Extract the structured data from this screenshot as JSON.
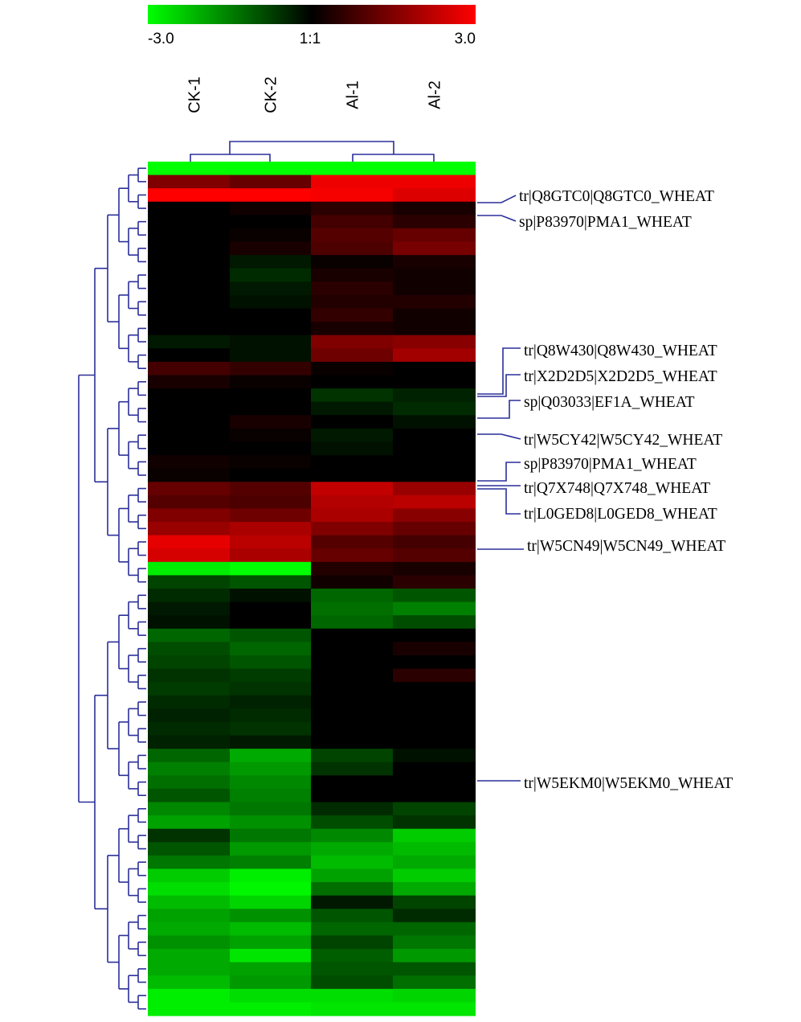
{
  "chart_data": {
    "type": "heatmap",
    "title": "",
    "color_scale": {
      "min": -3.0,
      "max": 3.0,
      "tick_labels": [
        "-3.0",
        "1:1",
        "3.0"
      ],
      "low_color": "#00ff00",
      "mid_color": "#000000",
      "high_color": "#ff0000"
    },
    "columns": [
      "CK-1",
      "CK-2",
      "Al-1",
      "Al-2"
    ],
    "row_tree_color": "#2b2f9a",
    "labeled_rows": [
      {
        "label": "tr|Q8GTC0|Q8GTC0_WHEAT"
      },
      {
        "label": "sp|P83970|PMA1_WHEAT"
      },
      {
        "label": "tr|Q8W430|Q8W430_WHEAT"
      },
      {
        "label": "tr|X2D2D5|X2D2D5_WHEAT"
      },
      {
        "label": "sp|Q03033|EF1A_WHEAT"
      },
      {
        "label": "tr|W5CY42|W5CY42_WHEAT"
      },
      {
        "label": "sp|P83970|PMA1_WHEAT"
      },
      {
        "label": "tr|Q7X748|Q7X748_WHEAT"
      },
      {
        "label": "tr|L0GED8|L0GED8_WHEAT"
      },
      {
        "label": "tr|W5CN49|W5CN49_WHEAT"
      },
      {
        "label": "tr|W5EKM0|W5EKM0_WHEAT"
      }
    ],
    "values": [
      [
        -3.0,
        -3.0,
        -3.0,
        -3.0
      ],
      [
        1.5,
        1.2,
        2.8,
        2.8
      ],
      [
        3.0,
        3.0,
        2.9,
        2.6
      ],
      [
        0.0,
        0.2,
        0.5,
        0.3
      ],
      [
        0.0,
        0.0,
        0.8,
        0.5
      ],
      [
        0.0,
        0.1,
        1.0,
        1.2
      ],
      [
        0.0,
        0.3,
        0.9,
        1.4
      ],
      [
        0.0,
        -0.3,
        0.1,
        0.3
      ],
      [
        0.0,
        -0.5,
        0.3,
        0.2
      ],
      [
        0.0,
        -0.3,
        0.5,
        0.2
      ],
      [
        0.0,
        -0.2,
        0.4,
        0.4
      ],
      [
        0.0,
        0.0,
        0.6,
        0.2
      ],
      [
        0.0,
        0.0,
        0.3,
        0.2
      ],
      [
        -0.3,
        -0.2,
        1.5,
        1.6
      ],
      [
        0.0,
        -0.2,
        1.3,
        1.9
      ],
      [
        0.8,
        0.6,
        0.1,
        0.0
      ],
      [
        0.3,
        0.1,
        0.0,
        0.0
      ],
      [
        0.0,
        0.0,
        -0.6,
        -0.4
      ],
      [
        0.0,
        0.0,
        -0.3,
        -0.5
      ],
      [
        0.0,
        0.3,
        0.0,
        -0.2
      ],
      [
        0.0,
        0.1,
        -0.3,
        0.0
      ],
      [
        0.0,
        0.0,
        -0.2,
        0.0
      ],
      [
        0.2,
        0.1,
        0.0,
        0.0
      ],
      [
        0.1,
        0.0,
        0.0,
        0.0
      ],
      [
        1.2,
        1.0,
        2.3,
        1.8
      ],
      [
        1.0,
        0.9,
        2.1,
        2.2
      ],
      [
        1.5,
        1.3,
        2.0,
        1.6
      ],
      [
        1.8,
        2.0,
        1.5,
        1.2
      ],
      [
        2.7,
        2.2,
        1.0,
        0.8
      ],
      [
        2.5,
        2.0,
        1.2,
        1.0
      ],
      [
        -2.8,
        -3.0,
        0.4,
        0.3
      ],
      [
        -0.8,
        -1.0,
        0.2,
        0.5
      ],
      [
        -0.5,
        -0.2,
        -1.2,
        -1.0
      ],
      [
        -0.3,
        0.0,
        -1.3,
        -1.5
      ],
      [
        -0.2,
        0.0,
        -1.2,
        -0.9
      ],
      [
        -1.2,
        -1.0,
        0.0,
        0.0
      ],
      [
        -0.9,
        -1.2,
        0.0,
        0.3
      ],
      [
        -0.8,
        -1.0,
        0.0,
        0.0
      ],
      [
        -0.6,
        -0.7,
        0.0,
        0.5
      ],
      [
        -0.7,
        -0.6,
        0.0,
        0.0
      ],
      [
        -0.5,
        -0.4,
        0.0,
        0.0
      ],
      [
        -0.4,
        -0.5,
        0.0,
        0.0
      ],
      [
        -0.5,
        -0.6,
        0.0,
        0.0
      ],
      [
        -0.4,
        -0.3,
        0.0,
        0.0
      ],
      [
        -1.2,
        -2.0,
        -0.8,
        -0.2
      ],
      [
        -1.5,
        -1.8,
        -0.6,
        0.0
      ],
      [
        -1.3,
        -1.6,
        0.0,
        0.0
      ],
      [
        -1.0,
        -1.5,
        0.0,
        0.0
      ],
      [
        -1.6,
        -1.4,
        -0.5,
        -0.8
      ],
      [
        -1.9,
        -1.7,
        -0.9,
        -0.6
      ],
      [
        -0.6,
        -1.4,
        -1.6,
        -2.4
      ],
      [
        -1.0,
        -1.8,
        -2.0,
        -2.2
      ],
      [
        -1.4,
        -1.5,
        -2.2,
        -2.0
      ],
      [
        -2.4,
        -2.8,
        -1.9,
        -2.4
      ],
      [
        -2.6,
        -2.9,
        -1.3,
        -2.0
      ],
      [
        -2.2,
        -2.5,
        -0.3,
        -0.8
      ],
      [
        -1.9,
        -1.7,
        -1.0,
        -0.5
      ],
      [
        -2.0,
        -2.2,
        -1.2,
        -1.2
      ],
      [
        -1.7,
        -1.9,
        -0.8,
        -1.4
      ],
      [
        -2.0,
        -2.7,
        -1.1,
        -1.8
      ],
      [
        -2.0,
        -1.9,
        -1.0,
        -1.0
      ],
      [
        -2.2,
        -1.8,
        -0.9,
        -1.3
      ],
      [
        -2.8,
        -2.6,
        -2.6,
        -2.5
      ],
      [
        -2.8,
        -2.8,
        -2.7,
        -2.7
      ]
    ]
  }
}
